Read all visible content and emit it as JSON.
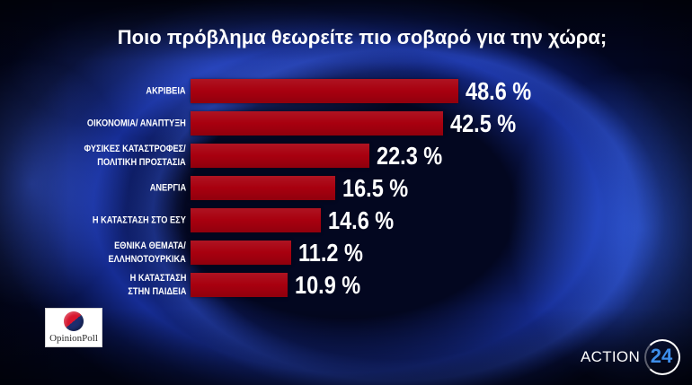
{
  "chart_data": {
    "type": "bar",
    "orientation": "horizontal",
    "title": "Ποιο πρόβλημα θεωρείτε πιο σοβαρό για την χώρα;",
    "categories": [
      "ΑΚΡΙΒΕΙΑ",
      "ΟΙΚΟΝΟΜΙΑ/ ΑΝΑΠΤΥΞΗ",
      "ΦΥΣΙΚΕΣ ΚΑΤΑΣΤΡΟΦΕΣ/\nΠΟΛΙΤΙΚΗ ΠΡΟΣΤΑΣΙΑ",
      "ΑΝΕΡΓΙΑ",
      "Η ΚΑΤΑΣΤΑΣΗ ΣΤΟ ΕΣΥ",
      "ΕΘΝΙΚΑ ΘΕΜΑΤΑ/\nΕΛΛΗΝΟΤΟΥΡΚΙΚΑ",
      "Η ΚΑΤΑΣΤΑΣΗ\nΣΤΗΝ ΠΑΙΔΕΙΑ"
    ],
    "values": [
      48.6,
      42.5,
      22.3,
      16.5,
      14.6,
      11.2,
      10.9
    ],
    "value_labels": [
      "48.6 %",
      "42.5 %",
      "22.3 %",
      "16.5 %",
      "14.6 %",
      "11.2 %",
      "10.9 %"
    ],
    "bar_color": "#a8000f",
    "grid": false,
    "legend": "none"
  },
  "pollster_logo": {
    "text": "OpinionPoll",
    "emblem_colors": [
      "#d8152d",
      "#1c2d6e"
    ]
  },
  "channel_logo": {
    "word": "ACTION",
    "number": "24",
    "number_color": "#3d8eea"
  },
  "colors": {
    "background": "#020620",
    "text": "#ffffff"
  }
}
